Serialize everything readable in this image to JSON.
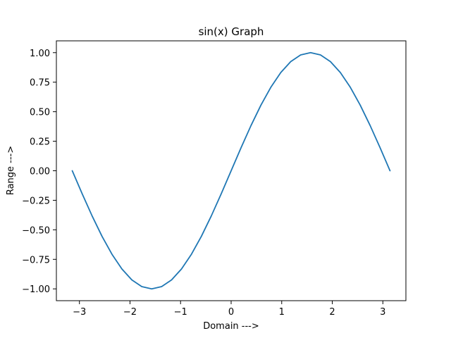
{
  "chart_data": {
    "type": "line",
    "title": "sin(x) Graph",
    "xlabel": "Domain --->",
    "ylabel": "Range --->",
    "xlim": [
      -3.4558,
      3.4558
    ],
    "ylim": [
      -1.1,
      1.1
    ],
    "x_ticks": [
      {
        "value": -3,
        "label": "−3"
      },
      {
        "value": -2,
        "label": "−2"
      },
      {
        "value": -1,
        "label": "−1"
      },
      {
        "value": 0,
        "label": "0"
      },
      {
        "value": 1,
        "label": "1"
      },
      {
        "value": 2,
        "label": "2"
      },
      {
        "value": 3,
        "label": "3"
      }
    ],
    "y_ticks": [
      {
        "value": -1.0,
        "label": "−1.00"
      },
      {
        "value": -0.75,
        "label": "−0.75"
      },
      {
        "value": -0.5,
        "label": "−0.50"
      },
      {
        "value": -0.25,
        "label": "−0.25"
      },
      {
        "value": 0.0,
        "label": "0.00"
      },
      {
        "value": 0.25,
        "label": "0.25"
      },
      {
        "value": 0.5,
        "label": "0.50"
      },
      {
        "value": 0.75,
        "label": "0.75"
      },
      {
        "value": 1.0,
        "label": "1.00"
      }
    ],
    "grid": false,
    "legend": "none",
    "series": [
      {
        "color": "#1f77b4",
        "x": [
          -3.1416,
          -2.9452,
          -2.7489,
          -2.5525,
          -2.3562,
          -2.1598,
          -1.9635,
          -1.7671,
          -1.5708,
          -1.3744,
          -1.1781,
          -0.9817,
          -0.7854,
          -0.589,
          -0.3927,
          -0.1963,
          0.0,
          0.1963,
          0.3927,
          0.589,
          0.7854,
          0.9817,
          1.1781,
          1.3744,
          1.5708,
          1.7671,
          1.9635,
          2.1598,
          2.3562,
          2.5525,
          2.7489,
          2.9452,
          3.1416
        ],
        "y": [
          0.0,
          -0.1951,
          -0.3827,
          -0.5556,
          -0.7071,
          -0.8315,
          -0.9239,
          -0.9808,
          -1.0,
          -0.9808,
          -0.9239,
          -0.8315,
          -0.7071,
          -0.5556,
          -0.3827,
          -0.1951,
          0.0,
          0.1951,
          0.3827,
          0.5556,
          0.7071,
          0.8315,
          0.9239,
          0.9808,
          1.0,
          0.9808,
          0.9239,
          0.8315,
          0.7071,
          0.5556,
          0.3827,
          0.1951,
          0.0
        ]
      }
    ]
  }
}
